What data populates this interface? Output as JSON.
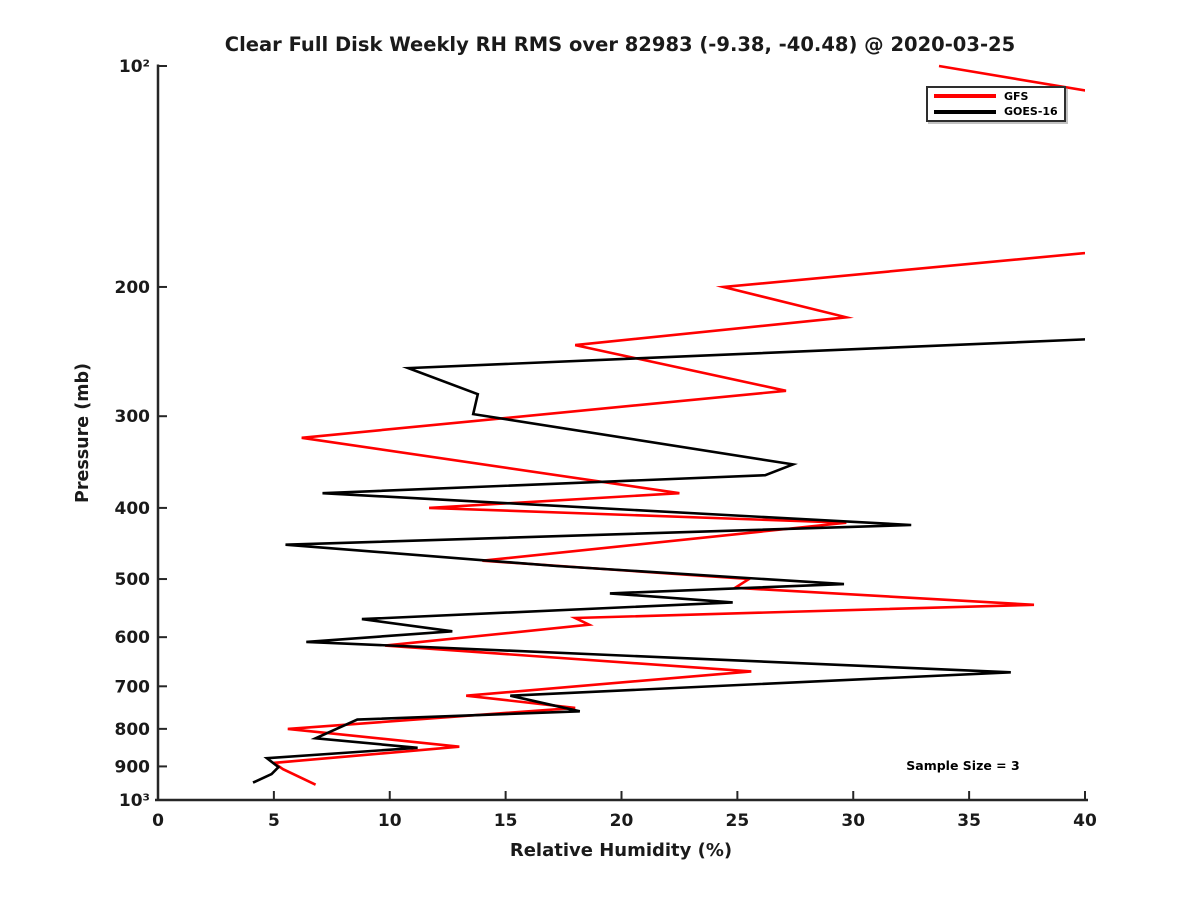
{
  "title": "Clear Full Disk Weekly RH RMS over 82983 (-9.38, -40.48) @ 2020-03-25",
  "annotation": {
    "text": "Sample Size = 3"
  },
  "legend": {
    "items": [
      {
        "label": "GFS",
        "color": "#ff0000"
      },
      {
        "label": "GOES-16",
        "color": "#000000"
      }
    ]
  },
  "axes": {
    "x": {
      "label": "Relative Humidity (%)",
      "min": 0,
      "max": 40,
      "scale": "linear",
      "ticks": [
        {
          "v": 0,
          "label": "0"
        },
        {
          "v": 5,
          "label": "5"
        },
        {
          "v": 10,
          "label": "10"
        },
        {
          "v": 15,
          "label": "15"
        },
        {
          "v": 20,
          "label": "20"
        },
        {
          "v": 25,
          "label": "25"
        },
        {
          "v": 30,
          "label": "30"
        },
        {
          "v": 35,
          "label": "35"
        },
        {
          "v": 40,
          "label": "40"
        }
      ]
    },
    "y": {
      "label": "Pressure (mb)",
      "min": 100,
      "max": 1000,
      "scale": "log",
      "direction": "top-is-min",
      "ticks": [
        {
          "v": 100,
          "label": "10²"
        },
        {
          "v": 200,
          "label": "200"
        },
        {
          "v": 300,
          "label": "300"
        },
        {
          "v": 400,
          "label": "400"
        },
        {
          "v": 500,
          "label": "500"
        },
        {
          "v": 600,
          "label": "600"
        },
        {
          "v": 700,
          "label": "700"
        },
        {
          "v": 800,
          "label": "800"
        },
        {
          "v": 900,
          "label": "900"
        },
        {
          "v": 1000,
          "label": "10³"
        }
      ]
    }
  },
  "chart_data": {
    "type": "line",
    "title": "Clear Full Disk Weekly RH RMS over 82983 (-9.38, -40.48) @ 2020-03-25",
    "xlabel": "Relative Humidity (%)",
    "ylabel": "Pressure (mb)",
    "xlim": [
      0,
      40
    ],
    "ylim_pressure_mb": [
      100,
      1000
    ],
    "y_axis": "log, inverted (100 mb top, 1000 mb bottom)",
    "grid": false,
    "legend_position": "upper right",
    "sample_size": 3,
    "series": [
      {
        "name": "GFS",
        "color": "#ff0000",
        "points_rh_vs_mb": [
          [
            33.7,
            100
          ],
          [
            52.0,
            125
          ],
          [
            44.0,
            175
          ],
          [
            24.4,
            200
          ],
          [
            29.7,
            220
          ],
          [
            18.0,
            240
          ],
          [
            27.1,
            277
          ],
          [
            6.2,
            321
          ],
          [
            22.5,
            382
          ],
          [
            11.7,
            400
          ],
          [
            29.7,
            419
          ],
          [
            14.0,
            472
          ],
          [
            25.5,
            500
          ],
          [
            24.9,
            514
          ],
          [
            37.8,
            542
          ],
          [
            18.0,
            565
          ],
          [
            18.6,
            577
          ],
          [
            9.8,
            616
          ],
          [
            25.6,
            668
          ],
          [
            13.3,
            721
          ],
          [
            18.0,
            749
          ],
          [
            5.6,
            800
          ],
          [
            13.0,
            846
          ],
          [
            5.0,
            890
          ],
          [
            5.4,
            908
          ],
          [
            6.8,
            953
          ]
        ]
      },
      {
        "name": "GOES-16",
        "color": "#000000",
        "points_rh_vs_mb": [
          [
            41.0,
            235
          ],
          [
            10.8,
            258
          ],
          [
            13.8,
            280
          ],
          [
            13.6,
            298
          ],
          [
            27.4,
            349
          ],
          [
            26.2,
            361
          ],
          [
            7.1,
            382
          ],
          [
            32.5,
            422
          ],
          [
            5.5,
            449
          ],
          [
            17.2,
            480
          ],
          [
            29.6,
            508
          ],
          [
            19.5,
            523
          ],
          [
            24.8,
            538
          ],
          [
            8.8,
            567
          ],
          [
            12.7,
            589
          ],
          [
            6.4,
            609
          ],
          [
            36.8,
            670
          ],
          [
            15.2,
            721
          ],
          [
            18.2,
            757
          ],
          [
            8.6,
            777
          ],
          [
            6.8,
            824
          ],
          [
            11.2,
            849
          ],
          [
            4.7,
            877
          ],
          [
            5.2,
            902
          ],
          [
            4.9,
            922
          ],
          [
            4.1,
            947
          ]
        ]
      }
    ]
  }
}
